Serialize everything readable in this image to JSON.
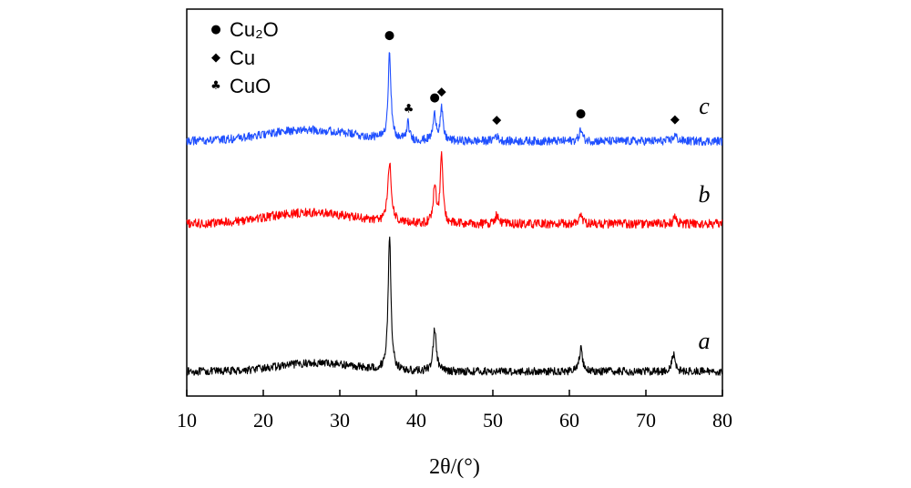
{
  "chart_data": {
    "type": "line",
    "title": "",
    "xlabel": "2θ/(°)",
    "ylabel": "",
    "xlim": [
      10,
      80
    ],
    "x_ticks": [
      "10",
      "20",
      "30",
      "40",
      "50",
      "60",
      "70",
      "80"
    ],
    "x_tick_values": [
      10,
      20,
      30,
      40,
      50,
      60,
      70,
      80
    ],
    "grid": false,
    "legend_position": "top-left",
    "legend": [
      {
        "symbol": "circle",
        "glyph": "●",
        "label": "Cu₂O"
      },
      {
        "symbol": "diamond",
        "glyph": "◆",
        "label": "Cu"
      },
      {
        "symbol": "club",
        "glyph": "♣",
        "label": "CuO"
      }
    ],
    "series": [
      {
        "name": "a",
        "label": "a",
        "color": "#000000",
        "baseline": 0.0,
        "noise": 1.4,
        "hump": {
          "center": 27,
          "width": 7,
          "height": 3
        },
        "peaks": [
          {
            "x": 36.5,
            "height": 48,
            "width": 0.22
          },
          {
            "x": 42.4,
            "height": 15,
            "width": 0.25
          },
          {
            "x": 61.5,
            "height": 8,
            "width": 0.25
          },
          {
            "x": 73.6,
            "height": 6,
            "width": 0.25
          }
        ]
      },
      {
        "name": "b",
        "label": "b",
        "color": "#ff0000",
        "baseline": 0.0,
        "noise": 1.6,
        "hump": {
          "center": 26,
          "width": 8,
          "height": 4
        },
        "peaks": [
          {
            "x": 36.5,
            "height": 21,
            "width": 0.28
          },
          {
            "x": 42.4,
            "height": 14,
            "width": 0.22
          },
          {
            "x": 43.3,
            "height": 25,
            "width": 0.2
          },
          {
            "x": 50.5,
            "height": 3,
            "width": 0.3
          },
          {
            "x": 61.5,
            "height": 3,
            "width": 0.3
          },
          {
            "x": 73.8,
            "height": 2,
            "width": 0.3
          }
        ]
      },
      {
        "name": "c",
        "label": "c",
        "color": "#1f4fff",
        "baseline": 0.0,
        "noise": 1.5,
        "hump": {
          "center": 26,
          "width": 8,
          "height": 4
        },
        "peaks": [
          {
            "x": 36.5,
            "height": 31,
            "width": 0.22
          },
          {
            "x": 38.9,
            "height": 6,
            "width": 0.22
          },
          {
            "x": 42.4,
            "height": 9,
            "width": 0.25
          },
          {
            "x": 43.3,
            "height": 11,
            "width": 0.22
          },
          {
            "x": 50.4,
            "height": 2,
            "width": 0.3
          },
          {
            "x": 61.5,
            "height": 4,
            "width": 0.25
          },
          {
            "x": 73.8,
            "height": 2,
            "width": 0.3
          }
        ]
      }
    ],
    "annotations": [
      {
        "series": "c",
        "x": 36.5,
        "symbol": "circle",
        "glyph": "●"
      },
      {
        "series": "c",
        "x": 39.0,
        "symbol": "club",
        "glyph": "♣"
      },
      {
        "series": "c",
        "x": 42.4,
        "symbol": "circle",
        "glyph": "●"
      },
      {
        "series": "c",
        "x": 43.3,
        "symbol": "diamond",
        "glyph": "◆"
      },
      {
        "series": "c",
        "x": 50.5,
        "symbol": "diamond",
        "glyph": "◆"
      },
      {
        "series": "c",
        "x": 61.5,
        "symbol": "circle",
        "glyph": "●"
      },
      {
        "series": "c",
        "x": 73.8,
        "symbol": "diamond",
        "glyph": "◆"
      }
    ]
  }
}
